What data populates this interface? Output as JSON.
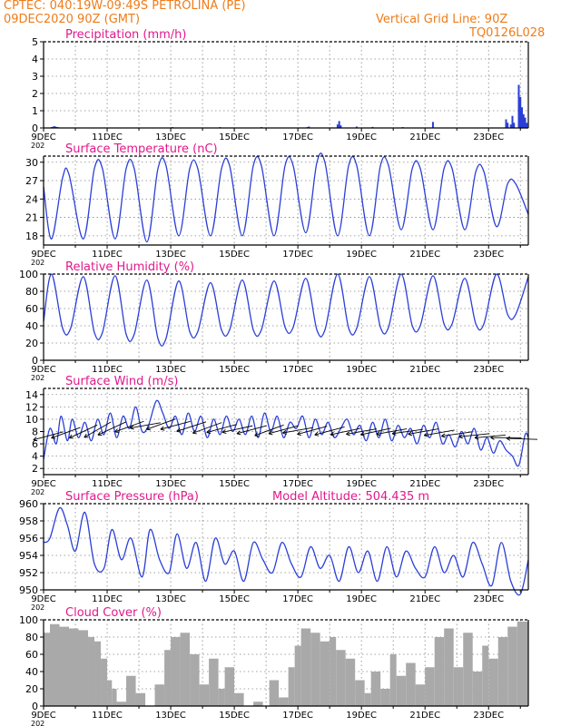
{
  "header": {
    "line1_left": "CPTEC:  040:19W-09:49S  PETROLINA (PE)",
    "line2_left": "09DEC2020 90Z (GMT)",
    "line2_right": "Vertical Grid Line: 90Z",
    "line3_right": "TQ0126L028"
  },
  "x_ticks": [
    "9DEC",
    "11DEC",
    "13DEC",
    "15DEC",
    "17DEC",
    "19DEC",
    "21DEC",
    "23DEC"
  ],
  "x_tick_sub": "202",
  "colors": {
    "line": "#2b3fd6",
    "title": "#e0198c",
    "header": "#ee7c1a",
    "cloud": "#a9a9a9",
    "grid": "#888888",
    "wind_arrow": "#000000"
  },
  "chart_data": [
    {
      "type": "bar",
      "title": "Precipitation (mm/h)",
      "ylim": [
        0,
        5
      ],
      "yticks": [
        0,
        1,
        2,
        3,
        4,
        5
      ],
      "x_unit": "days since 9DEC2020 00Z",
      "x": [
        9.25,
        9.3,
        9.35,
        9.4,
        9.45,
        13.05,
        14.55,
        15.85,
        17.3,
        17.35,
        18.25,
        18.3,
        18.35,
        18.85,
        19.35,
        20.3,
        21.25,
        23.55,
        23.6,
        23.7,
        23.75,
        23.8,
        23.95,
        24.0,
        24.05,
        24.1,
        24.15,
        24.2
      ],
      "values": [
        0.05,
        0.08,
        0.1,
        0.06,
        0.05,
        0.05,
        0.05,
        0.05,
        0.05,
        0.08,
        0.2,
        0.4,
        0.15,
        0.08,
        0.06,
        0.05,
        0.35,
        0.5,
        0.3,
        0.2,
        0.7,
        0.3,
        2.5,
        1.8,
        1.2,
        0.8,
        0.6,
        0.3
      ],
      "grid": true
    },
    {
      "type": "line",
      "title": "Surface Temperature (nC)",
      "ylim": [
        16.5,
        31
      ],
      "yticks": [
        18,
        21,
        24,
        27,
        30
      ],
      "x_unit": "days since 9DEC2020 00Z",
      "x": [
        9.0,
        9.25,
        9.6,
        9.8,
        10.25,
        10.6,
        10.85,
        11.25,
        11.6,
        11.85,
        12.25,
        12.6,
        12.85,
        13.25,
        13.6,
        13.85,
        14.25,
        14.6,
        14.85,
        15.25,
        15.6,
        15.85,
        16.25,
        16.6,
        16.85,
        17.25,
        17.6,
        17.85,
        18.25,
        18.6,
        18.85,
        19.25,
        19.6,
        19.85,
        20.25,
        20.6,
        20.85,
        21.25,
        21.6,
        21.85,
        22.25,
        22.6,
        22.85,
        23.25,
        23.6,
        23.85,
        24.25
      ],
      "values": [
        26.0,
        17.5,
        27.5,
        28.0,
        17.5,
        29.0,
        29.0,
        17.5,
        29.0,
        29.0,
        17.0,
        29.0,
        29.5,
        18.0,
        29.0,
        29.0,
        18.0,
        29.0,
        29.5,
        18.0,
        29.5,
        29.5,
        18.0,
        29.5,
        29.5,
        18.5,
        30.0,
        30.0,
        18.0,
        29.5,
        29.5,
        18.0,
        29.5,
        29.5,
        19.0,
        29.0,
        29.0,
        19.0,
        29.0,
        29.0,
        19.0,
        28.5,
        28.5,
        19.5,
        26.5,
        26.5,
        21.5
      ],
      "grid": true
    },
    {
      "type": "line",
      "title": "Relative Humidity (%)",
      "ylim": [
        0,
        100
      ],
      "yticks": [
        0,
        20,
        40,
        60,
        80,
        100
      ],
      "x_unit": "days since 9DEC2020 00Z",
      "x": [
        9.0,
        9.25,
        9.6,
        9.85,
        10.25,
        10.6,
        10.85,
        11.25,
        11.6,
        11.85,
        12.25,
        12.6,
        12.85,
        13.25,
        13.6,
        13.85,
        14.25,
        14.6,
        14.85,
        15.25,
        15.6,
        15.85,
        16.25,
        16.6,
        16.85,
        17.25,
        17.6,
        17.85,
        18.25,
        18.6,
        18.85,
        19.25,
        19.6,
        19.85,
        20.25,
        20.6,
        20.85,
        21.25,
        21.6,
        21.85,
        22.25,
        22.6,
        22.85,
        23.25,
        23.6,
        23.85,
        24.25
      ],
      "values": [
        45,
        100,
        37,
        37,
        97,
        32,
        32,
        98,
        30,
        30,
        93,
        25,
        25,
        92,
        33,
        33,
        90,
        35,
        35,
        93,
        35,
        35,
        92,
        38,
        38,
        95,
        35,
        35,
        100,
        37,
        37,
        97,
        38,
        38,
        100,
        40,
        40,
        98,
        42,
        42,
        95,
        42,
        42,
        100,
        53,
        53,
        97
      ],
      "grid": true
    },
    {
      "type": "line",
      "title": "Surface Wind (m/s)",
      "ylim": [
        1,
        15
      ],
      "yticks": [
        2,
        4,
        6,
        8,
        10,
        12,
        14
      ],
      "x_unit": "days since 9DEC2020 00Z",
      "x": [
        9.0,
        9.2,
        9.4,
        9.55,
        9.75,
        9.9,
        10.1,
        10.3,
        10.5,
        10.7,
        10.9,
        11.1,
        11.3,
        11.5,
        11.7,
        11.9,
        12.1,
        12.3,
        12.55,
        12.75,
        12.95,
        13.15,
        13.35,
        13.55,
        13.75,
        13.95,
        14.15,
        14.35,
        14.55,
        14.75,
        14.95,
        15.15,
        15.35,
        15.55,
        15.75,
        15.95,
        16.15,
        16.35,
        16.55,
        16.75,
        16.95,
        17.15,
        17.35,
        17.55,
        17.75,
        17.95,
        18.15,
        18.35,
        18.55,
        18.75,
        18.95,
        19.15,
        19.35,
        19.55,
        19.75,
        19.95,
        20.15,
        20.35,
        20.55,
        20.75,
        20.95,
        21.15,
        21.35,
        21.55,
        21.75,
        21.95,
        22.15,
        22.35,
        22.55,
        22.75,
        22.95,
        23.15,
        23.35,
        23.55,
        23.75,
        23.95,
        24.15,
        24.25
      ],
      "values": [
        3.5,
        8.5,
        6.0,
        10.5,
        6.5,
        10.0,
        7.0,
        9.5,
        6.5,
        10.0,
        7.5,
        11.0,
        7.0,
        10.5,
        8.5,
        12.0,
        8.0,
        9.0,
        13.0,
        11.0,
        8.5,
        10.5,
        7.5,
        11.0,
        8.0,
        10.5,
        7.0,
        10.0,
        7.5,
        10.5,
        8.0,
        10.0,
        7.5,
        10.5,
        7.0,
        11.0,
        8.0,
        10.5,
        7.0,
        9.5,
        8.5,
        10.5,
        7.0,
        10.0,
        7.5,
        9.5,
        7.0,
        8.5,
        10.0,
        7.5,
        9.0,
        6.5,
        9.5,
        7.0,
        10.0,
        6.5,
        9.0,
        7.0,
        8.5,
        6.0,
        9.0,
        7.0,
        9.5,
        6.0,
        7.5,
        5.5,
        8.0,
        6.0,
        8.5,
        5.0,
        7.0,
        4.5,
        6.5,
        5.0,
        4.0,
        2.5,
        7.5,
        7.0
      ],
      "arrows_x": [
        9.15,
        9.7,
        10.25,
        10.7,
        11.15,
        11.7,
        12.2,
        12.7,
        13.15,
        13.65,
        14.15,
        14.6,
        15.1,
        15.55,
        16.1,
        16.55,
        17.0,
        17.45,
        18.0,
        18.5,
        19.0,
        19.45,
        19.95,
        20.45,
        20.95,
        21.45,
        22.0,
        22.55,
        23.05,
        23.55,
        24.05
      ],
      "arrows_y": [
        7.3,
        7.8,
        8.0,
        8.3,
        8.5,
        8.8,
        9.0,
        9.2,
        9.0,
        8.8,
        8.6,
        8.5,
        8.4,
        8.3,
        8.2,
        8.3,
        8.2,
        8.2,
        8.1,
        8.0,
        8.0,
        8.0,
        8.0,
        8.0,
        8.0,
        7.8,
        7.6,
        7.4,
        7.2,
        7.0,
        6.8
      ],
      "arrows_angle_deg": [
        195,
        200,
        205,
        210,
        205,
        200,
        190,
        200,
        195,
        198,
        200,
        195,
        192,
        195,
        200,
        195,
        190,
        195,
        195,
        192,
        190,
        192,
        190,
        188,
        190,
        190,
        188,
        186,
        185,
        180,
        178
      ],
      "grid": true
    },
    {
      "type": "line",
      "title": "Surface Pressure (hPa)",
      "annotation": "Model Altitude: 504.435 m",
      "ylim": [
        950,
        960
      ],
      "yticks": [
        950,
        952,
        954,
        956,
        958,
        960
      ],
      "x_unit": "days since 9DEC2020 00Z",
      "x": [
        9.0,
        9.2,
        9.5,
        9.75,
        10.0,
        10.3,
        10.6,
        10.9,
        11.15,
        11.45,
        11.75,
        12.1,
        12.35,
        12.65,
        12.95,
        13.2,
        13.5,
        13.8,
        14.1,
        14.4,
        14.7,
        15.0,
        15.3,
        15.6,
        15.9,
        16.2,
        16.5,
        16.8,
        17.1,
        17.4,
        17.7,
        18.0,
        18.3,
        18.6,
        18.9,
        19.2,
        19.5,
        19.8,
        20.1,
        20.4,
        20.7,
        21.0,
        21.3,
        21.6,
        21.9,
        22.2,
        22.5,
        22.8,
        23.1,
        23.4,
        23.7,
        24.0,
        24.25
      ],
      "values": [
        955.5,
        956.0,
        959.5,
        957.5,
        954.5,
        959.0,
        953.0,
        952.5,
        957.0,
        953.5,
        956.0,
        951.5,
        957.0,
        953.5,
        952.0,
        956.5,
        952.5,
        955.5,
        951.0,
        956.0,
        953.0,
        954.5,
        951.0,
        955.5,
        953.5,
        952.0,
        955.5,
        953.0,
        951.5,
        955.0,
        952.5,
        954.0,
        951.0,
        955.0,
        952.0,
        954.5,
        951.0,
        955.0,
        951.5,
        954.5,
        952.5,
        951.5,
        955.0,
        952.0,
        954.0,
        951.5,
        955.5,
        953.0,
        950.5,
        955.5,
        951.0,
        949.5,
        953.5
      ],
      "grid": true
    },
    {
      "type": "area",
      "title": "Cloud Cover (%)",
      "ylim": [
        0,
        100
      ],
      "yticks": [
        0,
        20,
        40,
        60,
        80,
        100
      ],
      "x_unit": "days since 9DEC2020 00Z",
      "x": [
        9.0,
        9.2,
        9.5,
        9.8,
        10.1,
        10.4,
        10.6,
        10.8,
        11.0,
        11.15,
        11.3,
        11.6,
        11.9,
        12.2,
        12.5,
        12.8,
        13.0,
        13.3,
        13.6,
        13.9,
        14.2,
        14.5,
        14.7,
        15.0,
        15.3,
        15.6,
        15.9,
        16.1,
        16.4,
        16.7,
        16.9,
        17.1,
        17.4,
        17.7,
        18.0,
        18.2,
        18.5,
        18.8,
        19.1,
        19.3,
        19.6,
        19.9,
        20.1,
        20.4,
        20.7,
        21.0,
        21.3,
        21.6,
        21.9,
        22.2,
        22.5,
        22.8,
        23.0,
        23.3,
        23.6,
        23.9,
        24.25
      ],
      "values": [
        85,
        95,
        92,
        90,
        88,
        80,
        75,
        55,
        30,
        20,
        5,
        35,
        15,
        0,
        25,
        65,
        80,
        85,
        60,
        25,
        55,
        20,
        45,
        15,
        0,
        5,
        0,
        30,
        10,
        45,
        70,
        90,
        85,
        75,
        80,
        65,
        55,
        30,
        15,
        40,
        20,
        60,
        35,
        50,
        25,
        45,
        80,
        90,
        45,
        85,
        40,
        70,
        55,
        80,
        92,
        98,
        95
      ],
      "grid": true
    }
  ]
}
